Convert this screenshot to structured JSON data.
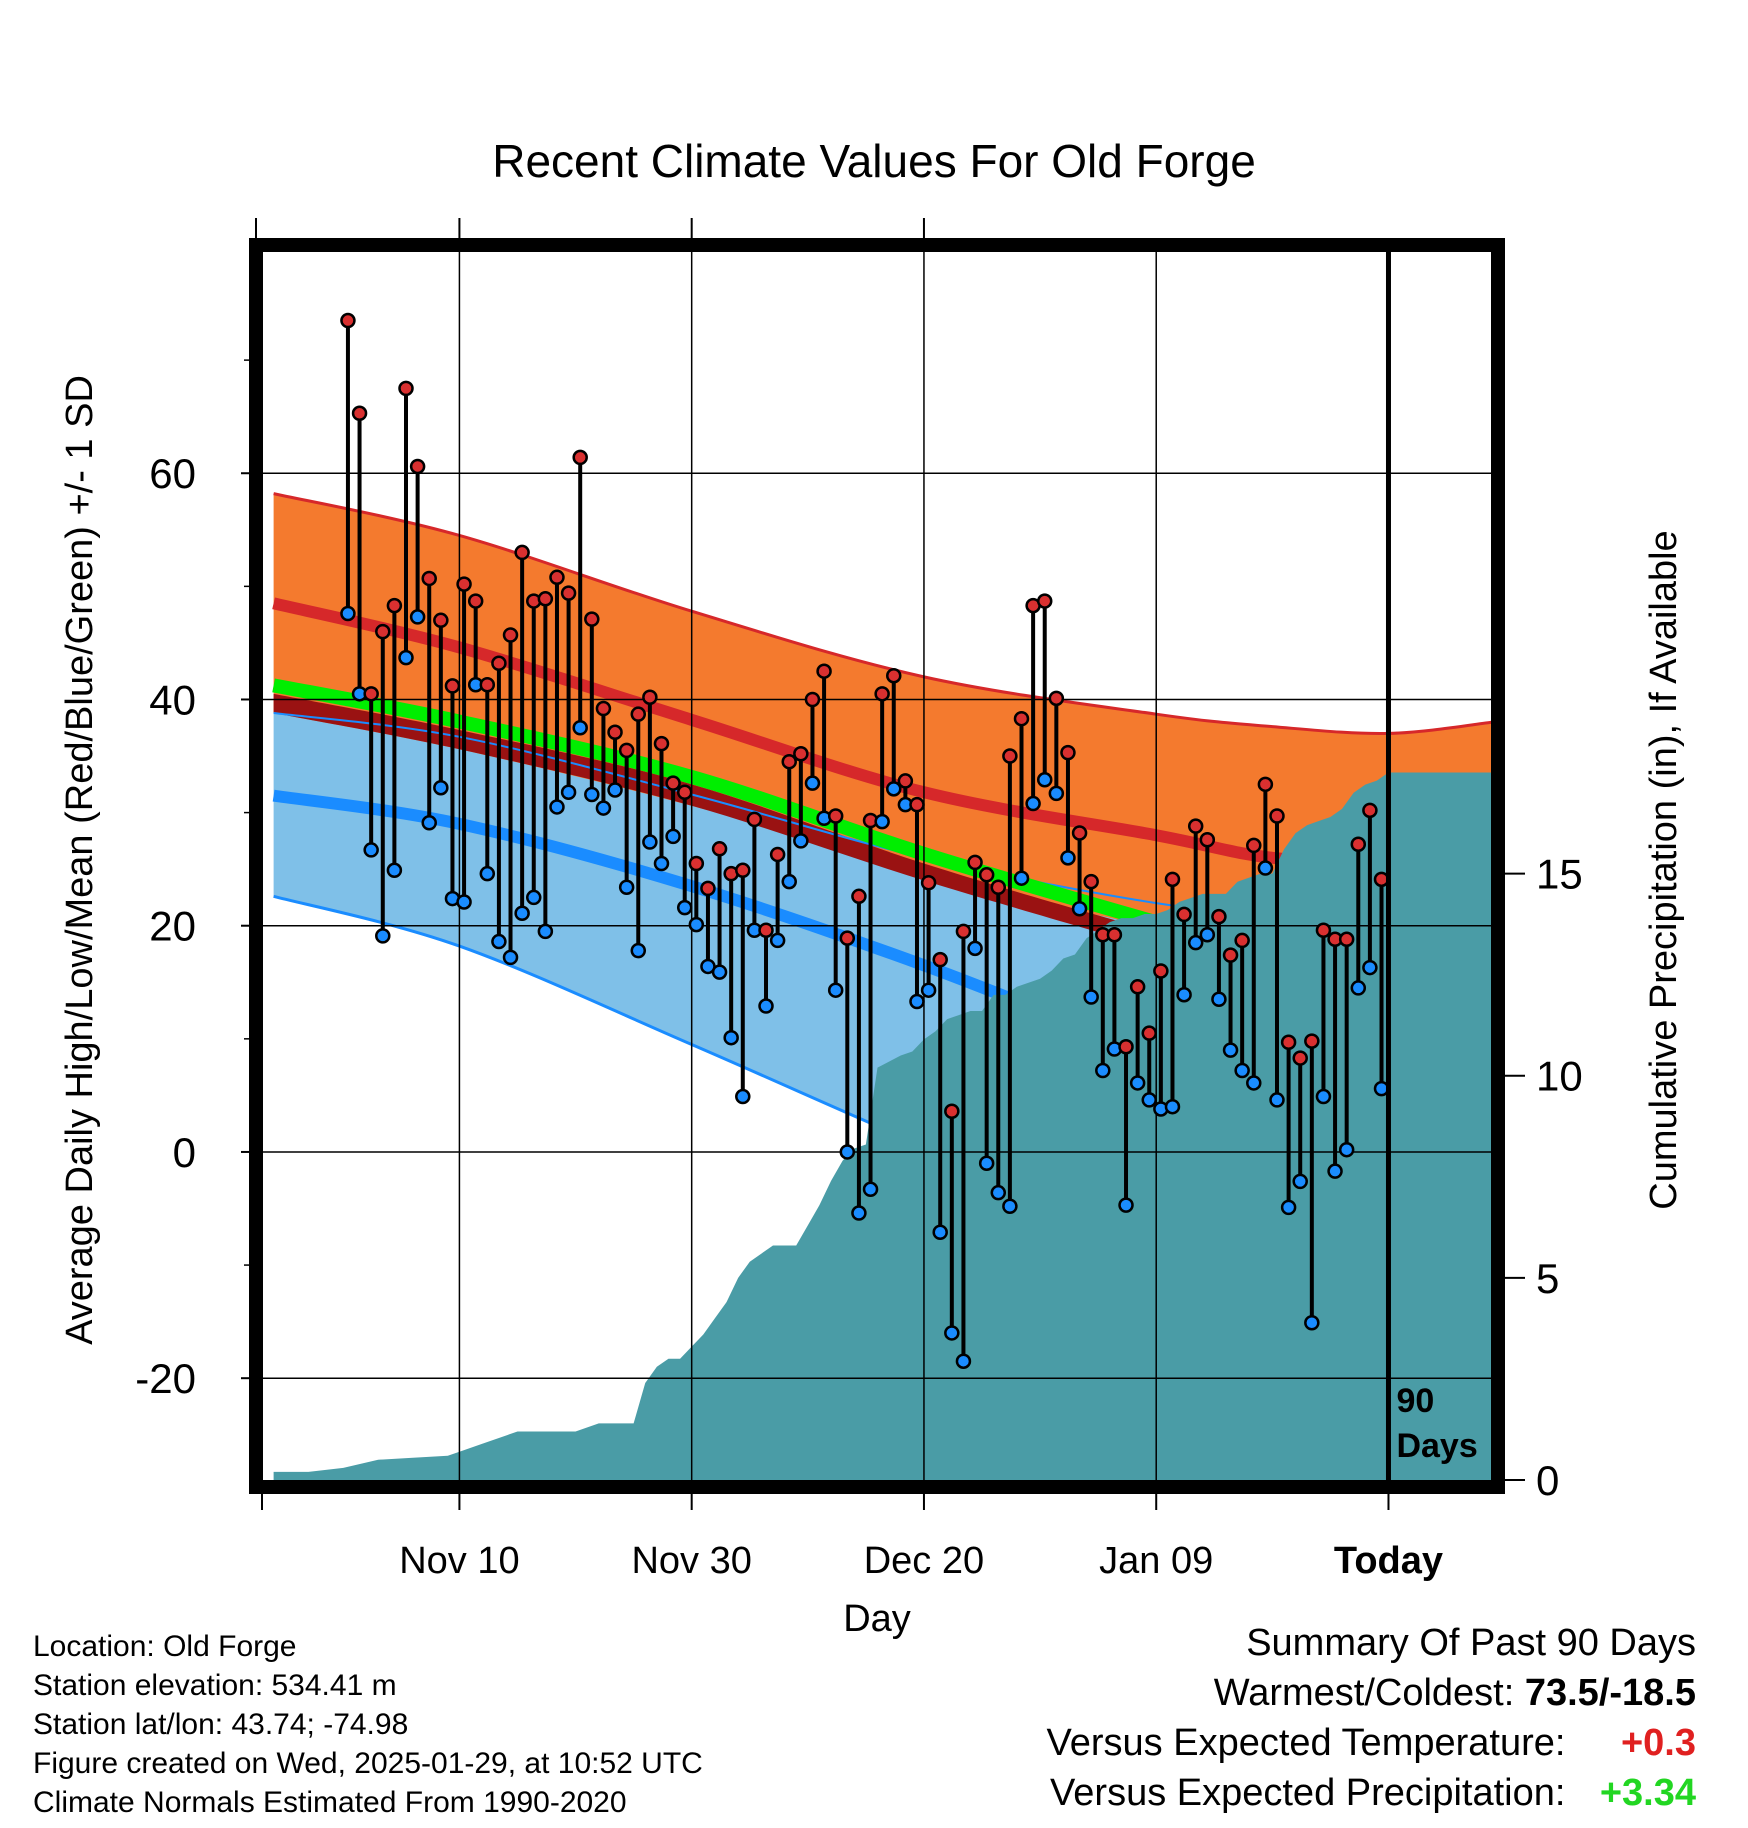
{
  "chart_data": {
    "type": "line",
    "title": "Recent Climate Values For Old Forge",
    "xlabel": "Day",
    "ylabel": "Average Daily High/Low/Mean (Red/Blue/Green) +/- 1 SD",
    "y2label": "Cumulative Precipitation (in), If Available",
    "x_range_days": [
      -97,
      9
    ],
    "ylim": [
      -29,
      80
    ],
    "y2lim": [
      0,
      30.5
    ],
    "yticks": [
      -20,
      0,
      20,
      40,
      60
    ],
    "y2ticks": [
      0,
      5,
      10,
      15
    ],
    "x_tick_days": [
      -80,
      -60,
      -40,
      -20,
      0
    ],
    "x_tick_labels": [
      "Nov 10",
      "Nov 30",
      "Dec 20",
      "Jan 09",
      "Today"
    ],
    "today_marker": {
      "day": 0,
      "label_line1": "90",
      "label_line2": "Days"
    },
    "normals": {
      "days": [
        -96,
        -80,
        -60,
        -40,
        -20,
        -10,
        0,
        9
      ],
      "high_upper": [
        58.2,
        54.5,
        47.8,
        42.0,
        38.7,
        37.6,
        37.0,
        38.0
      ],
      "high_mean": [
        48.5,
        44.6,
        38.2,
        31.8,
        28.0,
        26.0,
        25.7,
        27.0
      ],
      "mean_upper": [
        40.5,
        37.3,
        32.5,
        25.5,
        19.5,
        17.3,
        16.5,
        17.3
      ],
      "mean_lower": [
        38.8,
        35.6,
        30.6,
        24.0,
        17.9,
        14.6,
        14.4,
        15.8
      ],
      "high_lower": [
        38.8,
        35.6,
        30.6,
        24.5,
        19.8,
        17.5,
        16.5,
        17.6
      ],
      "low_upper": [
        38.8,
        36.7,
        31.6,
        26.0,
        22.0,
        21.2,
        20.3,
        20.8
      ],
      "low_mean": [
        31.5,
        29.0,
        23.5,
        16.5,
        8.6,
        6.0,
        5.8,
        7.0
      ],
      "low_lower": [
        22.6,
        18.2,
        9.5,
        0.5,
        -8.0,
        -11.0,
        -11.0,
        -9.0
      ]
    },
    "series": [
      {
        "name": "High",
        "values": [
          73.5,
          65.3,
          40.5,
          46.0,
          48.3,
          67.5,
          60.6,
          50.7,
          47.0,
          41.2,
          50.2,
          48.7,
          41.3,
          43.2,
          45.7,
          53.0,
          48.7,
          48.9,
          50.8,
          49.4,
          61.4,
          47.1,
          39.2,
          37.1,
          35.5,
          38.7,
          40.2,
          36.1,
          32.6,
          31.8,
          25.5,
          23.3,
          26.8,
          24.6,
          24.9,
          29.4,
          19.6,
          26.3,
          34.5,
          35.2,
          40.0,
          42.5,
          29.7,
          18.9,
          22.6,
          29.3,
          40.5,
          42.1,
          32.8,
          30.7,
          23.8,
          17.0,
          3.6,
          19.5,
          25.6,
          24.5,
          23.4,
          35.0,
          38.3,
          48.3,
          48.7,
          40.1,
          35.3,
          28.2,
          23.9,
          19.2,
          19.2,
          9.3,
          14.6,
          10.5,
          16.0,
          24.1,
          21.0,
          28.8,
          27.6,
          20.8,
          17.4,
          18.7,
          27.1,
          32.5,
          29.7,
          9.7,
          8.3,
          9.8,
          19.6,
          18.8,
          18.8,
          27.2,
          30.2,
          24.1
        ]
      },
      {
        "name": "Low",
        "values": [
          47.6,
          40.5,
          26.7,
          19.1,
          24.9,
          43.7,
          47.3,
          29.1,
          32.2,
          22.4,
          22.1,
          41.3,
          24.6,
          18.6,
          17.2,
          21.1,
          22.5,
          19.5,
          30.5,
          31.8,
          37.5,
          31.6,
          30.4,
          32.0,
          23.4,
          17.8,
          27.4,
          25.5,
          27.9,
          21.6,
          20.1,
          16.4,
          15.9,
          10.1,
          4.9,
          19.6,
          12.9,
          18.7,
          23.9,
          27.5,
          32.6,
          29.5,
          14.3,
          0.0,
          -5.4,
          -3.3,
          29.2,
          32.1,
          30.7,
          13.3,
          14.3,
          -7.1,
          -16.0,
          -18.5,
          18.0,
          -1.0,
          -3.6,
          -4.8,
          24.2,
          30.8,
          32.9,
          31.7,
          26.0,
          21.5,
          13.7,
          7.2,
          9.1,
          -4.7,
          6.1,
          4.6,
          3.8,
          4.0,
          13.9,
          18.5,
          19.2,
          13.5,
          9.0,
          7.2,
          6.1,
          25.1,
          4.6,
          -4.9,
          -2.6,
          -15.1,
          4.9,
          -1.7,
          0.2,
          14.5,
          16.3,
          5.6
        ]
      },
      {
        "name": "Cumulative Precipitation",
        "days": [
          -96,
          -93,
          -90,
          -87,
          -84,
          -81,
          -80,
          -78,
          -75,
          -72,
          -70,
          -68,
          -66,
          -65,
          -64,
          -63,
          -62,
          -61,
          -59,
          -58,
          -57,
          -56,
          -55,
          -53,
          -51,
          -50,
          -49,
          -48,
          -47,
          -46,
          -45,
          -44,
          -42,
          -41,
          -40,
          -39,
          -38,
          -37,
          -36,
          -35,
          -34,
          -33,
          -32,
          -31,
          -30,
          -29,
          -28,
          -27,
          -26,
          -25,
          -24,
          -23,
          -22,
          -21,
          -20,
          -19,
          -18,
          -17,
          -16,
          -15,
          -14,
          -13,
          -12,
          -11,
          -10,
          -9,
          -8,
          -7,
          -6,
          -5,
          -4,
          -3,
          -2,
          -1,
          0,
          9
        ],
        "values": [
          0.2,
          0.2,
          0.3,
          0.5,
          0.55,
          0.6,
          0.7,
          0.9,
          1.2,
          1.2,
          1.2,
          1.4,
          1.4,
          1.4,
          2.4,
          2.8,
          3.0,
          3.0,
          3.6,
          4.0,
          4.4,
          5.0,
          5.4,
          5.8,
          5.8,
          6.3,
          6.8,
          7.4,
          7.9,
          8.2,
          8.3,
          10.2,
          10.5,
          10.6,
          10.9,
          11.1,
          11.4,
          11.5,
          11.6,
          11.6,
          12.0,
          12.0,
          12.2,
          12.3,
          12.4,
          12.6,
          12.9,
          13.0,
          13.4,
          13.6,
          13.8,
          13.9,
          13.9,
          14.0,
          14.0,
          14.1,
          14.3,
          14.4,
          14.5,
          14.5,
          14.5,
          14.8,
          14.9,
          15.0,
          15.0,
          15.6,
          16.0,
          16.2,
          16.3,
          16.4,
          16.6,
          17.0,
          17.2,
          17.3,
          17.5,
          17.5
        ]
      }
    ]
  },
  "footer": {
    "location": "Location: Old Forge",
    "elevation": "Station elevation: 534.41 m",
    "latlon": "Station lat/lon: 43.74; -74.98",
    "created": "Figure created on Wed, 2025-01-29, at 10:52 UTC",
    "normals": "Climate Normals Estimated From 1990-2020"
  },
  "summary": {
    "heading": "Summary Of Past 90 Days",
    "extremes_label": "Warmest/Coldest:",
    "extremes_value": "73.5/-18.5",
    "temp_label": "Versus Expected Temperature:",
    "temp_value": "+0.3",
    "precip_label": "Versus Expected Precipitation:",
    "precip_value": "+3.34",
    "colors": {
      "temp": "#e02020",
      "precip": "#22d622"
    }
  },
  "colors": {
    "high_band": "#f47a2e",
    "high_line": "#d6282a",
    "mean_band": "#9a1212",
    "mean_line": "#00ee00",
    "low_band": "#7fc0e8",
    "low_line": "#1a8cff",
    "precip": "#4a9ca6",
    "high_dot": "#d93030",
    "low_dot": "#1a8cff"
  }
}
